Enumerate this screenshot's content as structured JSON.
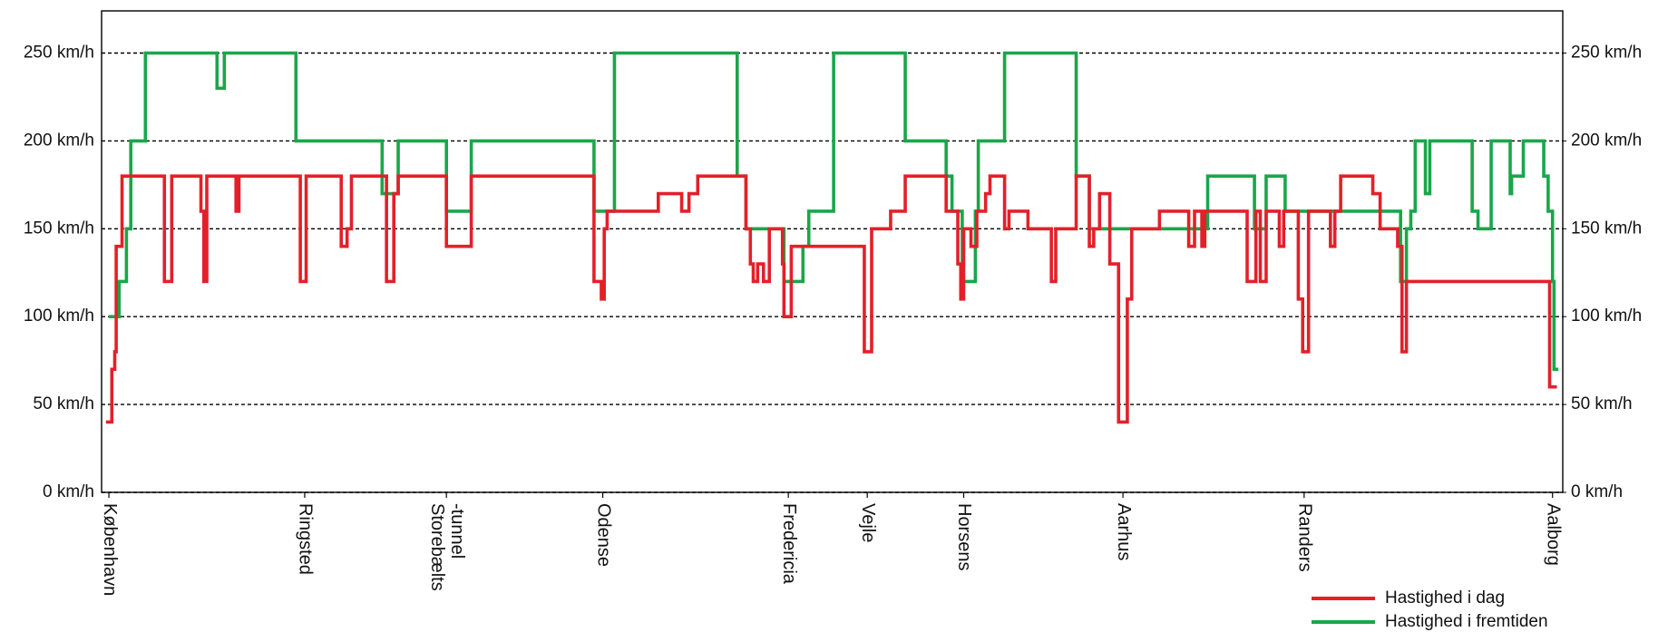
{
  "chart_data": {
    "type": "step",
    "ylim": [
      0,
      274
    ],
    "yticks": [
      {
        "value": 0,
        "label": "0 km/h"
      },
      {
        "value": 50,
        "label": "50 km/h"
      },
      {
        "value": 100,
        "label": "100 km/h"
      },
      {
        "value": 150,
        "label": "150 km/h"
      },
      {
        "value": 200,
        "label": "200 km/h"
      },
      {
        "value": 250,
        "label": "250 km/h"
      }
    ],
    "y2lim": [
      0,
      274
    ],
    "y2ticks": [
      {
        "value": 0,
        "label": "0 km/h"
      },
      {
        "value": 50,
        "label": "50 km/h"
      },
      {
        "value": 100,
        "label": "100 km/h"
      },
      {
        "value": 150,
        "label": "150 km/h"
      },
      {
        "value": 200,
        "label": "200 km/h"
      },
      {
        "value": 250,
        "label": "250 km/h"
      }
    ],
    "xlim": [
      0,
      100
    ],
    "grid": true,
    "legend": "bottom right",
    "stations": [
      {
        "label": [
          "København"
        ],
        "x": 0.5
      },
      {
        "label": [
          "Ringsted"
        ],
        "x": 13.9
      },
      {
        "label": [
          "Storebælts",
          "-tunnel"
        ],
        "x": 23.6
      },
      {
        "label": [
          "Odense"
        ],
        "x": 34.3
      },
      {
        "label": [
          "Fredericia"
        ],
        "x": 47.0
      },
      {
        "label": [
          "Vejle"
        ],
        "x": 52.4
      },
      {
        "label": [
          "Horsens"
        ],
        "x": 59.0
      },
      {
        "label": [
          "Aarhus"
        ],
        "x": 69.9
      },
      {
        "label": [
          "Randers"
        ],
        "x": 82.3
      },
      {
        "label": [
          "Aalborg"
        ],
        "x": 99.3
      }
    ],
    "series": [
      {
        "name": "Hastighed i fremtiden",
        "color": "#1aa64a",
        "x": [
          0.5,
          1.2,
          1.7,
          2.0,
          3.0,
          7.9,
          8.4,
          13.3,
          19.2,
          20.3,
          23.6,
          25.3,
          33.7,
          35.1,
          43.5,
          44.1,
          46.7,
          48.0,
          48.4,
          50.1,
          55.0,
          57.8,
          58.2,
          58.9,
          59.8,
          60.0,
          61.8,
          66.7,
          67.6,
          75.7,
          78.9,
          79.7,
          81.0,
          88.9,
          89.3,
          89.6,
          89.9,
          90.6,
          90.9,
          93.8,
          94.2,
          95.1,
          96.4,
          96.5,
          97.3,
          98.7,
          99.0,
          99.3,
          99.4,
          99.7
        ],
        "values": [
          100,
          120,
          150,
          200,
          250,
          230,
          250,
          200,
          170,
          200,
          160,
          200,
          160,
          250,
          180,
          150,
          120,
          140,
          160,
          250,
          200,
          180,
          160,
          120,
          160,
          200,
          250,
          180,
          150,
          180,
          150,
          180,
          160,
          120,
          150,
          160,
          200,
          170,
          200,
          160,
          150,
          200,
          170,
          180,
          200,
          180,
          160,
          120,
          70,
          70
        ]
      },
      {
        "name": "Hastighed i dag",
        "color": "#e3202a",
        "x": [
          0.3,
          0.7,
          0.9,
          1.0,
          1.4,
          4.3,
          4.8,
          6.8,
          7.0,
          7.2,
          9.2,
          9.4,
          13.6,
          14.0,
          16.4,
          16.8,
          17.1,
          19.5,
          20.0,
          20.3,
          23.6,
          25.3,
          33.7,
          34.2,
          34.4,
          34.6,
          38.1,
          39.7,
          40.2,
          40.8,
          44.1,
          44.4,
          44.6,
          44.9,
          45.3,
          45.7,
          46.6,
          46.7,
          47.2,
          52.2,
          52.7,
          54.0,
          55.0,
          57.8,
          58.6,
          58.8,
          59.0,
          59.5,
          59.9,
          60.5,
          60.8,
          61.8,
          62.1,
          63.4,
          65.0,
          65.3,
          66.7,
          67.6,
          67.9,
          68.3,
          69.0,
          69.6,
          70.2,
          70.5,
          72.4,
          74.4,
          74.8,
          75.3,
          75.5,
          78.4,
          79.0,
          79.3,
          79.7,
          80.6,
          80.9,
          81.9,
          82.2,
          82.6,
          84.1,
          84.4,
          84.8,
          87.0,
          87.5,
          88.7,
          89.0,
          89.3,
          99.1,
          99.6
        ],
        "values": [
          40,
          70,
          80,
          140,
          180,
          120,
          180,
          160,
          120,
          180,
          160,
          180,
          120,
          180,
          140,
          150,
          180,
          120,
          170,
          180,
          140,
          180,
          120,
          110,
          150,
          160,
          170,
          160,
          170,
          180,
          150,
          130,
          120,
          130,
          120,
          150,
          130,
          100,
          140,
          80,
          150,
          160,
          180,
          160,
          130,
          110,
          150,
          140,
          160,
          170,
          180,
          150,
          160,
          150,
          120,
          150,
          180,
          140,
          150,
          170,
          130,
          40,
          110,
          150,
          160,
          140,
          160,
          140,
          160,
          120,
          160,
          120,
          160,
          140,
          160,
          110,
          80,
          160,
          140,
          160,
          180,
          170,
          150,
          140,
          80,
          120,
          60,
          60
        ]
      }
    ]
  }
}
